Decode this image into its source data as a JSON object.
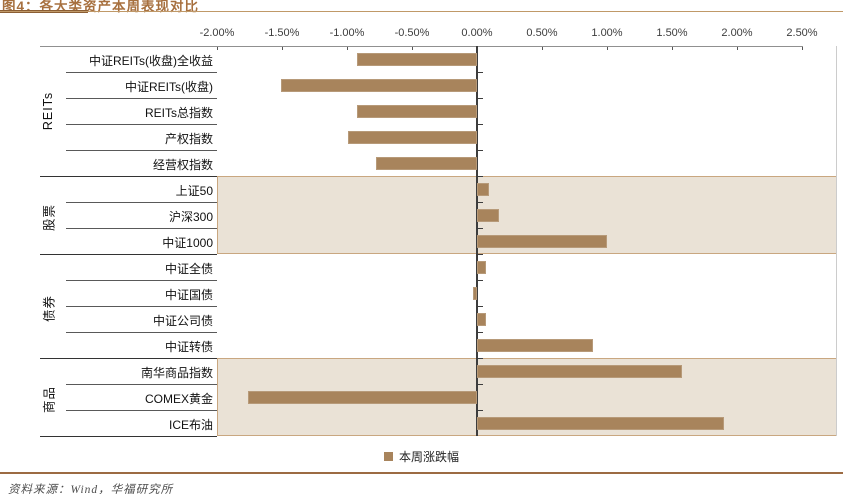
{
  "page": {
    "source_note": "资料来源：Wind，华福研究所"
  },
  "chart_data": {
    "type": "bar",
    "orientation": "horizontal",
    "title": "图4：各大类资产本周表现对比",
    "legend": "本周涨跌幅",
    "value_unit": "%",
    "x_axis": {
      "min": -2.0,
      "max": 2.5,
      "step": 0.5,
      "tick_labels": [
        "-2.00%",
        "-1.50%",
        "-1.00%",
        "-0.50%",
        "0.00%",
        "0.50%",
        "1.00%",
        "1.50%",
        "2.00%",
        "2.50%"
      ]
    },
    "groups": [
      {
        "label": "REITs",
        "highlighted": false,
        "items": [
          {
            "label": "中证REITs(收盘)全收益",
            "value": -0.92
          },
          {
            "label": "中证REITs(收盘)",
            "value": -1.51
          },
          {
            "label": "REITs总指数",
            "value": -0.92
          },
          {
            "label": "产权指数",
            "value": -0.99
          },
          {
            "label": "经营权指数",
            "value": -0.78
          }
        ]
      },
      {
        "label": "股票",
        "highlighted": true,
        "items": [
          {
            "label": "上证50",
            "value": 0.09
          },
          {
            "label": "沪深300",
            "value": 0.17
          },
          {
            "label": "中证1000",
            "value": 1.0
          }
        ]
      },
      {
        "label": "债券",
        "highlighted": false,
        "items": [
          {
            "label": "中证全债",
            "value": 0.07
          },
          {
            "label": "中证国债",
            "value": -0.03
          },
          {
            "label": "中证公司债",
            "value": 0.07
          },
          {
            "label": "中证转债",
            "value": 0.89
          }
        ]
      },
      {
        "label": "商品",
        "highlighted": true,
        "items": [
          {
            "label": "南华商品指数",
            "value": 1.58
          },
          {
            "label": "COMEX黄金",
            "value": -1.76
          },
          {
            "label": "ICE布油",
            "value": 1.9
          }
        ]
      }
    ],
    "colors": {
      "bar": "#A8845C",
      "band_background": "#EAE2D6",
      "band_border": "#C9A780",
      "title_accent": "#A7703F",
      "title_rule_dark": "#8B5E34",
      "title_rule_light": "#C09968",
      "footer_rule": "#9C6B43",
      "axis_line": "#909090",
      "zero_axis": "#3d3d3d"
    }
  }
}
